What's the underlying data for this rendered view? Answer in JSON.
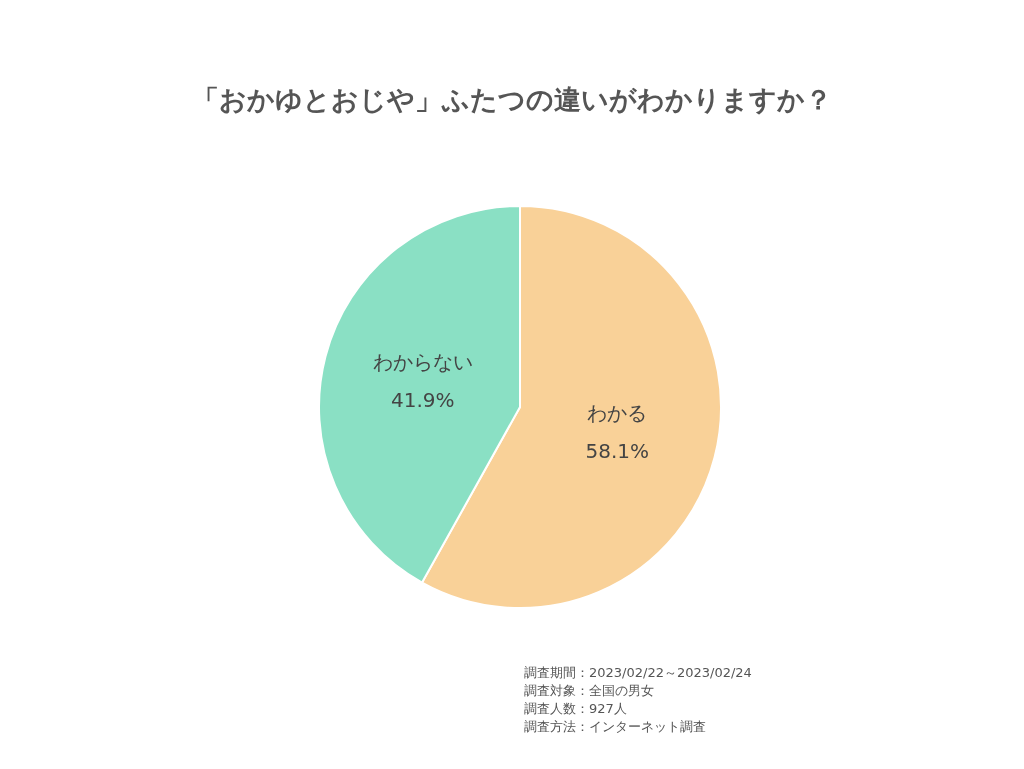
{
  "chart_data": {
    "type": "pie",
    "title": "「おかゆとおじや」ふたつの違いがわかりますか？",
    "categories": [
      "わかる",
      "わからない"
    ],
    "values": [
      58.1,
      41.9
    ],
    "value_labels": [
      "58.1%",
      "41.9%"
    ],
    "colors": [
      "#f9d198",
      "#8ae0c4"
    ],
    "legend": false,
    "annotations": [
      "調査期間：2023/02/22～2023/02/24",
      "調査対象：全国の男女",
      "調査人数：927人",
      "調査方法：インターネット調査"
    ]
  }
}
